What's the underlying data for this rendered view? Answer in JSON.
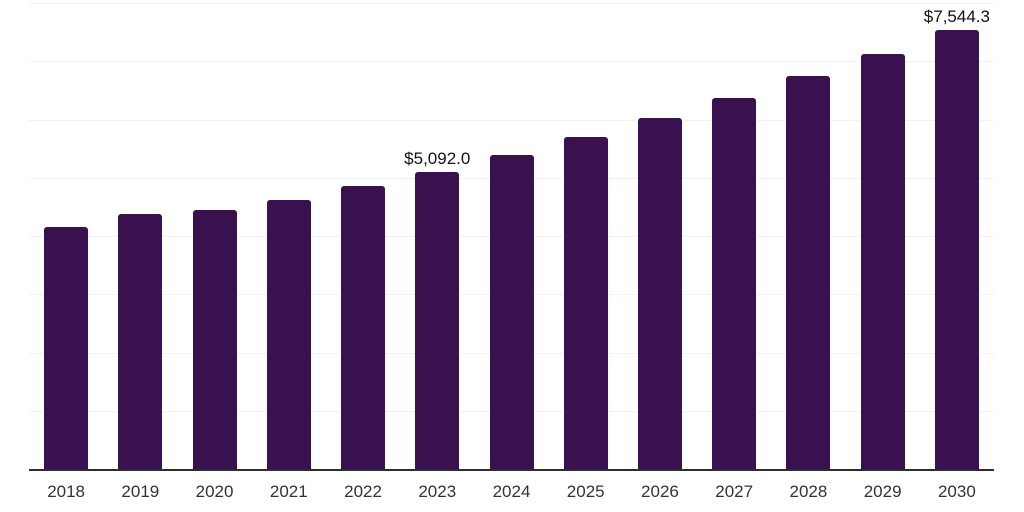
{
  "chart_data": {
    "type": "bar",
    "title": "",
    "xlabel": "",
    "ylabel": "",
    "categories": [
      "2018",
      "2019",
      "2020",
      "2021",
      "2022",
      "2023",
      "2024",
      "2025",
      "2026",
      "2027",
      "2028",
      "2029",
      "2030"
    ],
    "values": [
      4160,
      4380,
      4450,
      4620,
      4860,
      5092.0,
      5386,
      5697,
      6026,
      6374,
      6743,
      7133,
      7544.3
    ],
    "value_labels": {
      "2023": "$5,092.0",
      "2030": "$7,544.3"
    },
    "ylim": [
      0,
      8000
    ],
    "grid_step": 1000,
    "grid": "horizontal",
    "legend": false,
    "colors": {
      "bar": "#38114e",
      "gridline": "#f2f2f2",
      "axis": "#2e2e2e",
      "value_label": "#111111",
      "tick_label": "#333333",
      "background": "#ffffff"
    }
  }
}
